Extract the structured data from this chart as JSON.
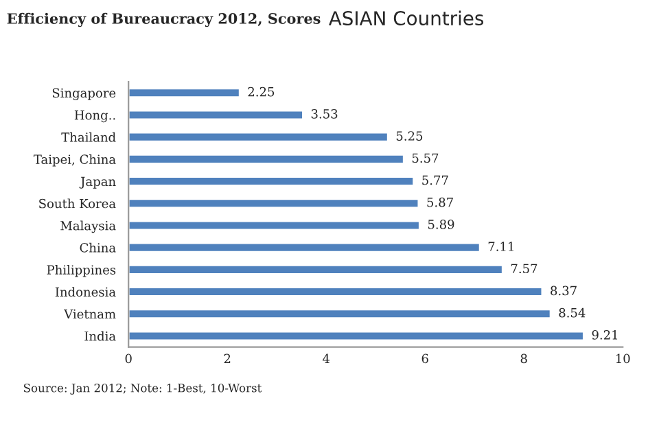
{
  "chart_data": {
    "type": "bar",
    "orientation": "horizontal",
    "title": "Efficiency of Bureaucracy 2012, Scores",
    "subtitle": "ASIAN Countries",
    "categories": [
      "Singapore",
      "Hong..",
      "Thailand",
      "Taipei, China",
      "Japan",
      "South Korea",
      "Malaysia",
      "China",
      "Philippines",
      "Indonesia",
      "Vietnam",
      "India"
    ],
    "values": [
      2.25,
      3.53,
      5.25,
      5.57,
      5.77,
      5.87,
      5.89,
      7.11,
      7.57,
      8.37,
      8.54,
      9.21
    ],
    "color": "#4f81bd",
    "xlim": [
      0,
      10
    ],
    "xticks": [
      0,
      2,
      4,
      6,
      8,
      10
    ],
    "data_labels": true,
    "grid": false,
    "legend": false,
    "annotations": [
      "Source: Jan 2012; Note: 1-Best, 10-Worst"
    ]
  }
}
